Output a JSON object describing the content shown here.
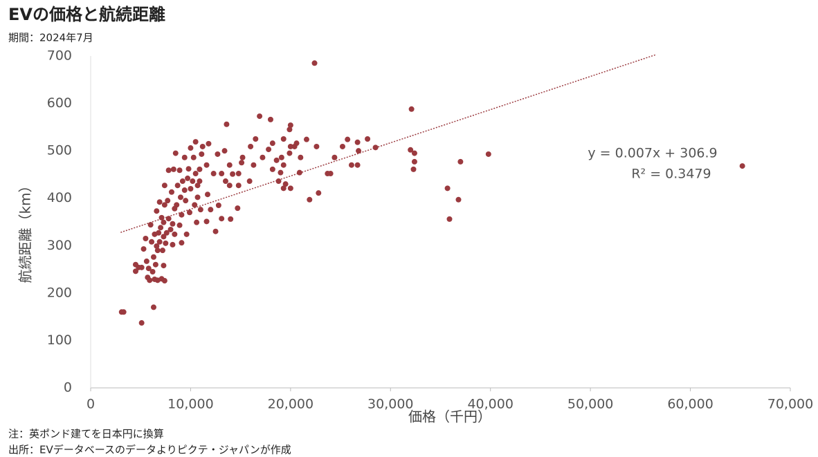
{
  "chart_data": {
    "type": "scatter",
    "title": "EVの価格と航続距離",
    "subtitle": "期間：2024年7月",
    "x_label": "価格（千円）",
    "y_label": "航続距離（km）",
    "notes": [
      "注：英ポンド建てを日本円に換算",
      "出所：EVデータベースのデータよりピクテ・ジャパンが作成"
    ],
    "color": "#9b3a3f",
    "xlim": [
      0,
      70000
    ],
    "ylim": [
      0,
      700
    ],
    "xticks": [
      0,
      {
        "value": 10000,
        "label": "10,000"
      },
      {
        "value": 20000,
        "label": "20,000"
      },
      {
        "value": 30000,
        "label": "30,000"
      },
      {
        "value": 40000,
        "label": "40,000"
      },
      {
        "value": 50000,
        "label": "50,000"
      },
      {
        "value": 60000,
        "label": "60,000"
      },
      {
        "value": 70000,
        "label": "70,000"
      }
    ],
    "yticks": [
      0,
      100,
      200,
      300,
      400,
      500,
      600,
      700
    ],
    "trendline": {
      "slope": 0.007,
      "intercept": 306.9,
      "x": [
        3000,
        56500
      ],
      "color": "#9b3a3f",
      "equation": "y = 0.007x + 306.9",
      "r2_label": "R² = 0.3479"
    },
    "x": [
      3100,
      3300,
      5100,
      6300,
      22400,
      32100,
      65200,
      39800,
      37000,
      36800,
      35900,
      35700,
      32300,
      32400,
      32400,
      32000,
      28500,
      27700,
      26800,
      26700,
      26700,
      26100,
      25700,
      25200,
      24400,
      24000,
      23700,
      22800,
      22600,
      21900,
      21600,
      20900,
      21000,
      20600,
      20400,
      20000,
      19900,
      20000,
      19900,
      20000,
      19500,
      19300,
      19300,
      19300,
      19100,
      19000,
      18800,
      18600,
      18200,
      18000,
      18200,
      17800,
      17200,
      16900,
      16500,
      16000,
      16300,
      15900,
      15200,
      15100,
      14800,
      14800,
      14700,
      14200,
      13900,
      13900,
      14000,
      13600,
      13500,
      13400,
      13100,
      13100,
      12800,
      12700,
      12500,
      12300,
      12000,
      11800,
      11700,
      11600,
      11600,
      11200,
      11100,
      11000,
      10900,
      10900,
      10700,
      10700,
      10600,
      10500,
      10500,
      10400,
      10300,
      10200,
      10000,
      10000,
      9900,
      9800,
      9700,
      9600,
      9500,
      9400,
      9400,
      9200,
      9100,
      9100,
      9000,
      8900,
      8900,
      8700,
      8600,
      8500,
      8400,
      8400,
      8300,
      8200,
      8200,
      8100,
      8000,
      7800,
      7800,
      7700,
      7600,
      7500,
      7400,
      7400,
      7300,
      7300,
      7200,
      7100,
      7000,
      6900,
      6900,
      6800,
      6700,
      6600,
      6600,
      6500,
      6400,
      6300,
      6200,
      6100,
      6000,
      5900,
      5700,
      5600,
      5800,
      5100,
      4800,
      4500,
      4500,
      5300,
      5500,
      6400,
      6700,
      7100,
      7400,
      7300
    ],
    "values": [
      160,
      160,
      137,
      170,
      685,
      588,
      468,
      493,
      477,
      397,
      356,
      421,
      461,
      477,
      495,
      502,
      507,
      525,
      500,
      518,
      470,
      470,
      524,
      509,
      486,
      452,
      452,
      411,
      509,
      397,
      524,
      454,
      486,
      516,
      509,
      554,
      545,
      509,
      495,
      421,
      430,
      421,
      525,
      470,
      486,
      454,
      436,
      480,
      516,
      566,
      461,
      503,
      486,
      573,
      525,
      509,
      470,
      436,
      486,
      475,
      452,
      427,
      379,
      451,
      470,
      427,
      356,
      556,
      436,
      500,
      452,
      357,
      385,
      493,
      330,
      452,
      376,
      515,
      408,
      470,
      351,
      509,
      493,
      376,
      461,
      436,
      427,
      402,
      349,
      452,
      519,
      386,
      486,
      436,
      506,
      420,
      370,
      462,
      442,
      324,
      395,
      486,
      417,
      436,
      365,
      306,
      402,
      459,
      343,
      427,
      386,
      495,
      324,
      378,
      461,
      302,
      346,
      413,
      334,
      459,
      357,
      395,
      327,
      305,
      427,
      386,
      349,
      319,
      290,
      359,
      338,
      308,
      392,
      327,
      290,
      299,
      373,
      260,
      324,
      276,
      245,
      308,
      344,
      227,
      233,
      267,
      252,
      254,
      254,
      260,
      246,
      293,
      315,
      229,
      227,
      230,
      226,
      258
    ]
  }
}
